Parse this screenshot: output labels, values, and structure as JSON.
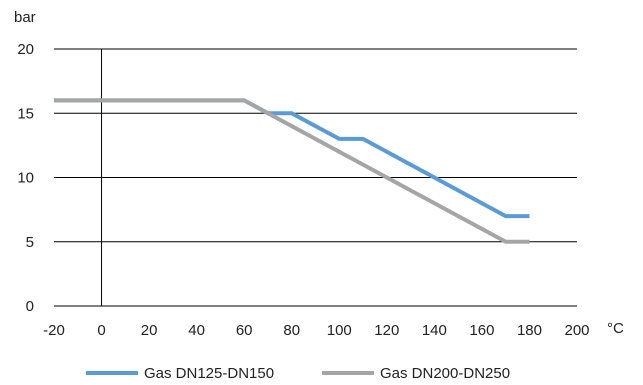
{
  "chart_data": {
    "type": "line",
    "title": "",
    "ylabel": "bar",
    "xlabel": "°C",
    "xlim": [
      -20,
      200
    ],
    "ylim": [
      0,
      20
    ],
    "xticks": [
      -20,
      0,
      20,
      40,
      60,
      80,
      100,
      120,
      140,
      160,
      180,
      200
    ],
    "yticks": [
      0,
      5,
      10,
      15,
      20
    ],
    "grid": "horizontal",
    "legend_position": "bottom",
    "series": [
      {
        "name": "Gas DN125-DN150",
        "color": "#5b9bd5",
        "points": [
          [
            -20,
            16
          ],
          [
            60,
            16
          ],
          [
            70,
            15
          ],
          [
            80,
            15
          ],
          [
            100,
            13
          ],
          [
            110,
            13
          ],
          [
            170,
            7
          ],
          [
            180,
            7
          ]
        ]
      },
      {
        "name": "Gas DN200-DN250",
        "color": "#a5a5a5",
        "points": [
          [
            -20,
            16
          ],
          [
            60,
            16
          ],
          [
            170,
            5
          ],
          [
            180,
            5
          ]
        ]
      }
    ]
  }
}
